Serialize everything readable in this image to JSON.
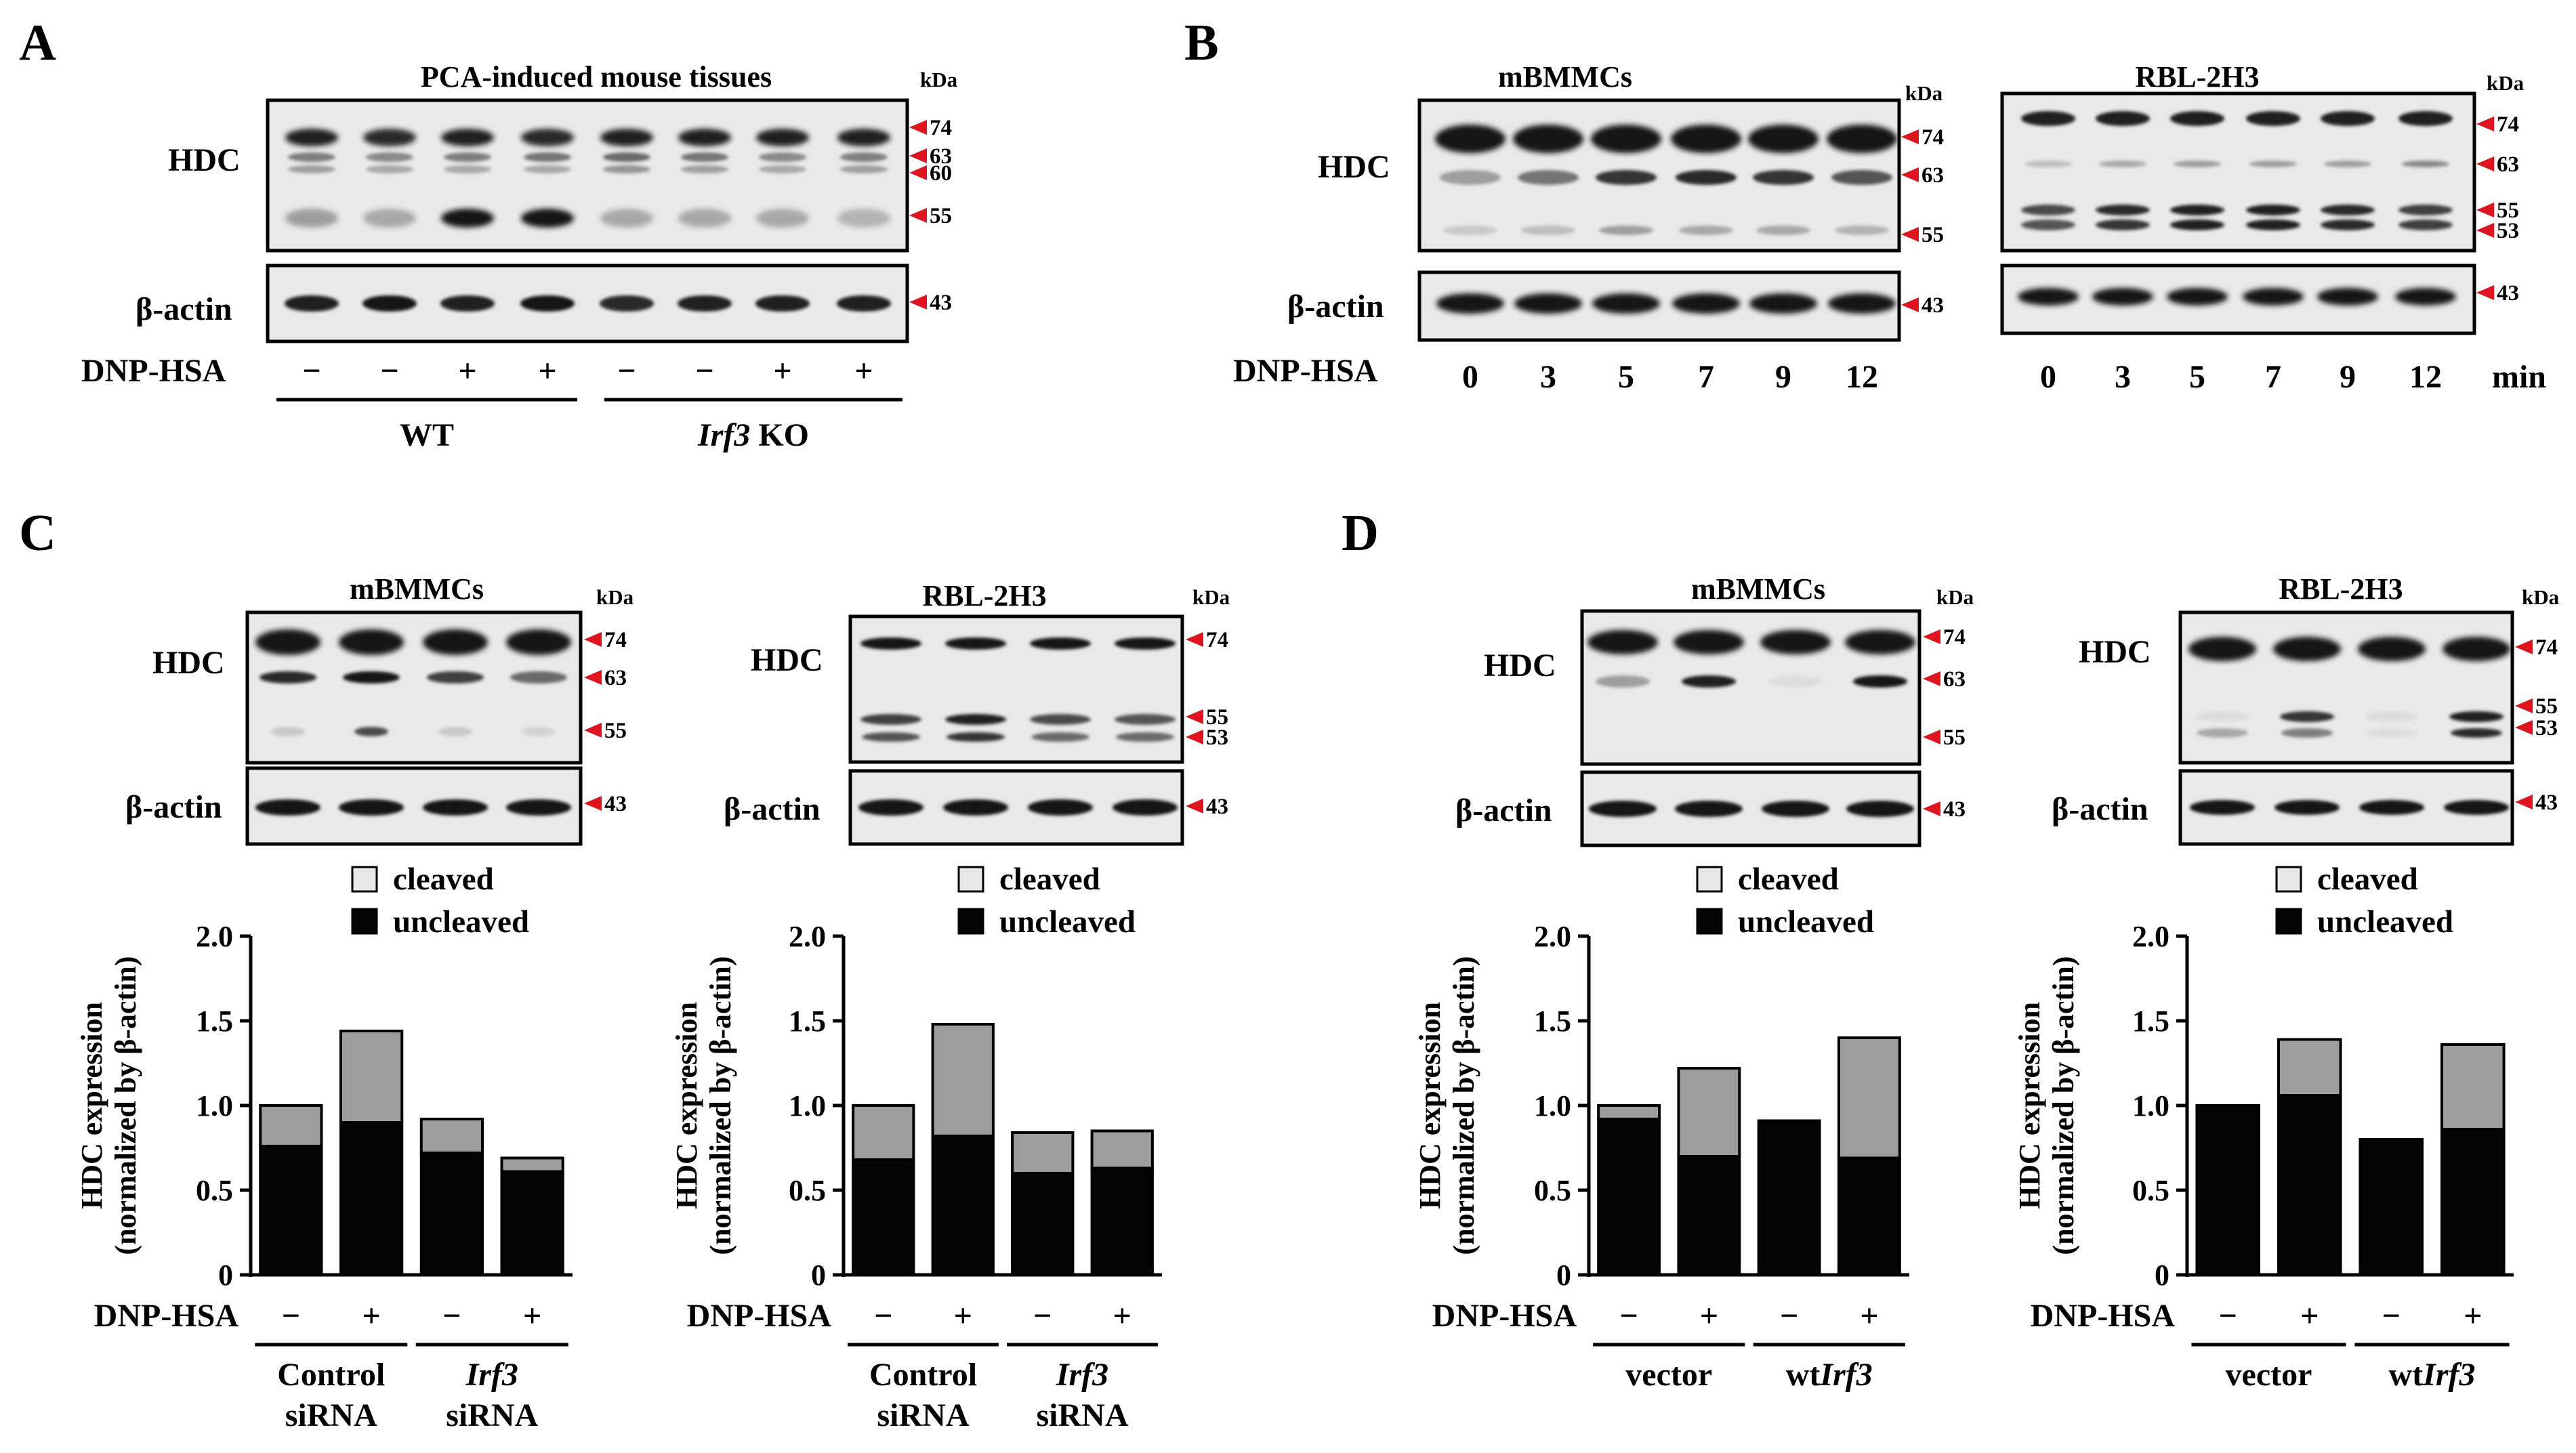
{
  "figure": {
    "colors": {
      "cleaved": "#9d9d9d",
      "uncleaved": "#050505",
      "arrow": "#e0141e",
      "band": "#161616"
    },
    "panels": {
      "A": {
        "letter": "A",
        "title": "PCA-induced mouse tissues",
        "kda": "kDa",
        "hdc_label": "HDC",
        "actin_label": "β-actin",
        "treatment_label": "DNP-HSA",
        "treatments": [
          "−",
          "−",
          "+",
          "+",
          "−",
          "−",
          "+",
          "+"
        ],
        "group1": "WT",
        "group2_italic": "Irf3",
        "group2_rest": " KO",
        "hdc_markers": [
          "74",
          "63",
          "60",
          "55"
        ],
        "actin_markers": [
          "43"
        ]
      },
      "B": {
        "letter": "B",
        "treatment_label": "DNP-HSA",
        "unit": "min",
        "times": [
          "0",
          "3",
          "5",
          "7",
          "9",
          "12"
        ],
        "left": {
          "title": "mBMMCs",
          "kda": "kDa",
          "hdc_label": "HDC",
          "actin_label": "β-actin",
          "hdc_markers": [
            "74",
            "63",
            "55"
          ],
          "actin_markers": [
            "43"
          ]
        },
        "right": {
          "title": "RBL-2H3",
          "kda": "kDa",
          "hdc_markers": [
            "74",
            "63",
            "55",
            "53"
          ],
          "actin_markers": [
            "43"
          ]
        }
      },
      "C": {
        "letter": "C",
        "left": {
          "title": "mBMMCs",
          "kda": "kDa",
          "hdc_label": "HDC",
          "actin_label": "β-actin",
          "hdc_markers": [
            "74",
            "63",
            "55"
          ],
          "actin_markers": [
            "43"
          ]
        },
        "right": {
          "title": "RBL-2H3",
          "kda": "kDa",
          "hdc_label": "HDC",
          "actin_label": "β-actin",
          "hdc_markers": [
            "74",
            "55",
            "53"
          ],
          "actin_markers": [
            "43"
          ]
        }
      },
      "D": {
        "letter": "D",
        "left": {
          "title": "mBMMCs",
          "kda": "kDa",
          "hdc_label": "HDC",
          "actin_label": "β-actin",
          "hdc_markers": [
            "74",
            "63",
            "55"
          ],
          "actin_markers": [
            "43"
          ]
        },
        "right": {
          "title": "RBL-2H3",
          "kda": "kDa",
          "hdc_label": "HDC",
          "actin_label": "β-actin",
          "hdc_markers": [
            "74",
            "55",
            "53"
          ],
          "actin_markers": [
            "43"
          ]
        }
      }
    }
  },
  "chart_data": [
    {
      "panel": "C-left",
      "type": "bar",
      "stacked": true,
      "ylabel_line1": "HDC expression",
      "ylabel_line2": "(normalized by β-actin)",
      "ylim": [
        0,
        2.0
      ],
      "yticks": [
        "0",
        "0.5",
        "1.0",
        "1.5",
        "2.0"
      ],
      "legend": [
        "cleaved",
        "uncleaved"
      ],
      "treatment_label": "DNP-HSA",
      "treatments": [
        "−",
        "+",
        "−",
        "+"
      ],
      "group1": "Control",
      "group1_line2": "siRNA",
      "group2_italic": "Irf3",
      "group2_prefix": "",
      "group2_line2": "siRNA",
      "series": [
        {
          "name": "uncleaved",
          "values": [
            0.76,
            0.9,
            0.72,
            0.61
          ]
        },
        {
          "name": "cleaved",
          "values": [
            0.24,
            0.54,
            0.2,
            0.08
          ]
        }
      ]
    },
    {
      "panel": "C-right",
      "type": "bar",
      "stacked": true,
      "ylabel_line1": "HDC expression",
      "ylabel_line2": "(normalized by β-actin)",
      "ylim": [
        0,
        2.0
      ],
      "yticks": [
        "0",
        "0.5",
        "1.0",
        "1.5",
        "2.0"
      ],
      "legend": [
        "cleaved",
        "uncleaved"
      ],
      "treatment_label": "DNP-HSA",
      "treatments": [
        "−",
        "+",
        "−",
        "+"
      ],
      "group1": "Control",
      "group1_line2": "siRNA",
      "group2_italic": "Irf3",
      "group2_prefix": "",
      "group2_line2": "siRNA",
      "series": [
        {
          "name": "uncleaved",
          "values": [
            0.68,
            0.82,
            0.6,
            0.63
          ]
        },
        {
          "name": "cleaved",
          "values": [
            0.32,
            0.66,
            0.24,
            0.22
          ]
        }
      ]
    },
    {
      "panel": "D-left",
      "type": "bar",
      "stacked": true,
      "ylabel_line1": "HDC expression",
      "ylabel_line2": "(normalized by β-actin)",
      "ylim": [
        0,
        2.0
      ],
      "yticks": [
        "0",
        "0.5",
        "1.0",
        "1.5",
        "2.0"
      ],
      "legend": [
        "cleaved",
        "uncleaved"
      ],
      "treatment_label": "DNP-HSA",
      "treatments": [
        "−",
        "+",
        "−",
        "+"
      ],
      "group1": "vector",
      "group1_line2": "",
      "group2_italic": "Irf3",
      "group2_prefix": "wt",
      "group2_line2": "",
      "series": [
        {
          "name": "uncleaved",
          "values": [
            0.92,
            0.7,
            0.91,
            0.69
          ]
        },
        {
          "name": "cleaved",
          "values": [
            0.08,
            0.52,
            0.0,
            0.71
          ]
        }
      ]
    },
    {
      "panel": "D-right",
      "type": "bar",
      "stacked": true,
      "ylabel_line1": "HDC expression",
      "ylabel_line2": "(normalized by β-actin)",
      "ylim": [
        0,
        2.0
      ],
      "yticks": [
        "0",
        "0.5",
        "1.0",
        "1.5",
        "2.0"
      ],
      "legend": [
        "cleaved",
        "uncleaved"
      ],
      "treatment_label": "DNP-HSA",
      "treatments": [
        "−",
        "+",
        "−",
        "+"
      ],
      "group1": "vector",
      "group1_line2": "",
      "group2_italic": "Irf3",
      "group2_prefix": "wt",
      "group2_line2": "",
      "series": [
        {
          "name": "uncleaved",
          "values": [
            1.0,
            1.06,
            0.8,
            0.86
          ]
        },
        {
          "name": "cleaved",
          "values": [
            0.0,
            0.33,
            0.0,
            0.5
          ]
        }
      ]
    }
  ]
}
